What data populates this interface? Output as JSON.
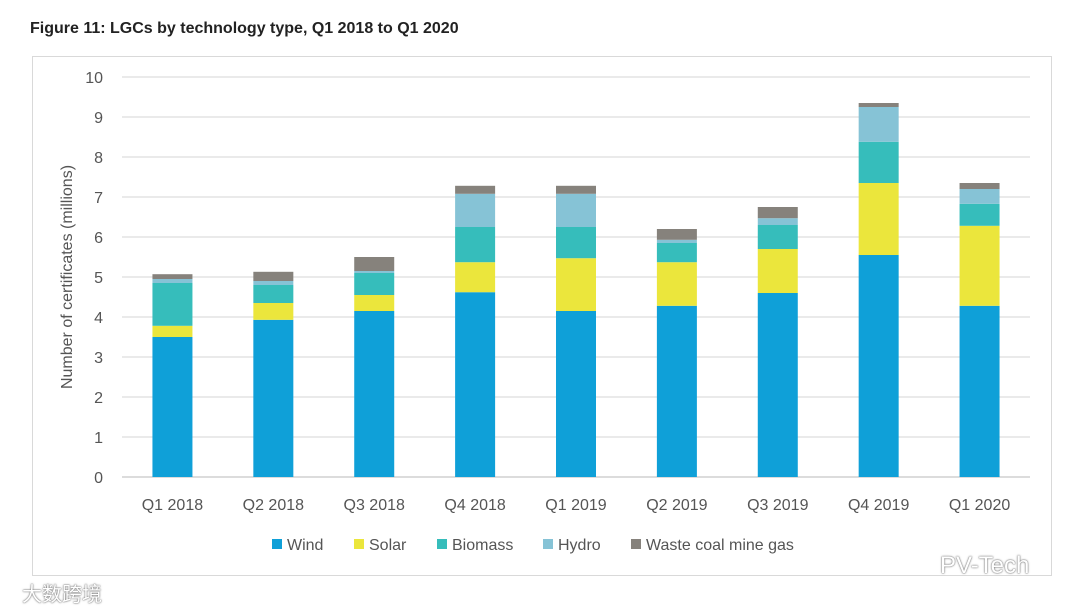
{
  "chart_data": {
    "type": "bar",
    "stacked": true,
    "title": "Figure 11: LGCs by technology type, Q1 2018 to Q1 2020",
    "xlabel": "",
    "ylabel": "Number of certificates (millions)",
    "ylim": [
      0,
      10
    ],
    "yticks": [
      "0",
      "1",
      "2",
      "3",
      "4",
      "5",
      "6",
      "7",
      "8",
      "9",
      "10"
    ],
    "grid": true,
    "legend_position": "bottom",
    "categories": [
      "Q1 2018",
      "Q2 2018",
      "Q3 2018",
      "Q4 2018",
      "Q1 2019",
      "Q2 2019",
      "Q3 2019",
      "Q4 2019",
      "Q1 2020"
    ],
    "series": [
      {
        "name": "Wind",
        "color": "#0fa0d8",
        "values": [
          3.5,
          3.93,
          4.15,
          4.62,
          4.15,
          4.28,
          4.6,
          5.55,
          4.28
        ]
      },
      {
        "name": "Solar",
        "color": "#ebe63c",
        "values": [
          0.28,
          0.42,
          0.4,
          0.75,
          1.32,
          1.09,
          1.1,
          1.8,
          2.0
        ]
      },
      {
        "name": "Biomass",
        "color": "#36bdbb",
        "values": [
          1.07,
          0.45,
          0.55,
          0.88,
          0.78,
          0.48,
          0.6,
          1.03,
          0.55
        ]
      },
      {
        "name": "Hydro",
        "color": "#86c3d6",
        "values": [
          0.1,
          0.1,
          0.05,
          0.83,
          0.83,
          0.08,
          0.17,
          0.87,
          0.37
        ]
      },
      {
        "name": "Waste coal mine gas",
        "color": "#86827c",
        "values": [
          0.12,
          0.23,
          0.35,
          0.2,
          0.2,
          0.27,
          0.28,
          0.1,
          0.15
        ]
      }
    ]
  },
  "watermarks": {
    "left": "大数跨境",
    "right": "PV-Tech"
  }
}
